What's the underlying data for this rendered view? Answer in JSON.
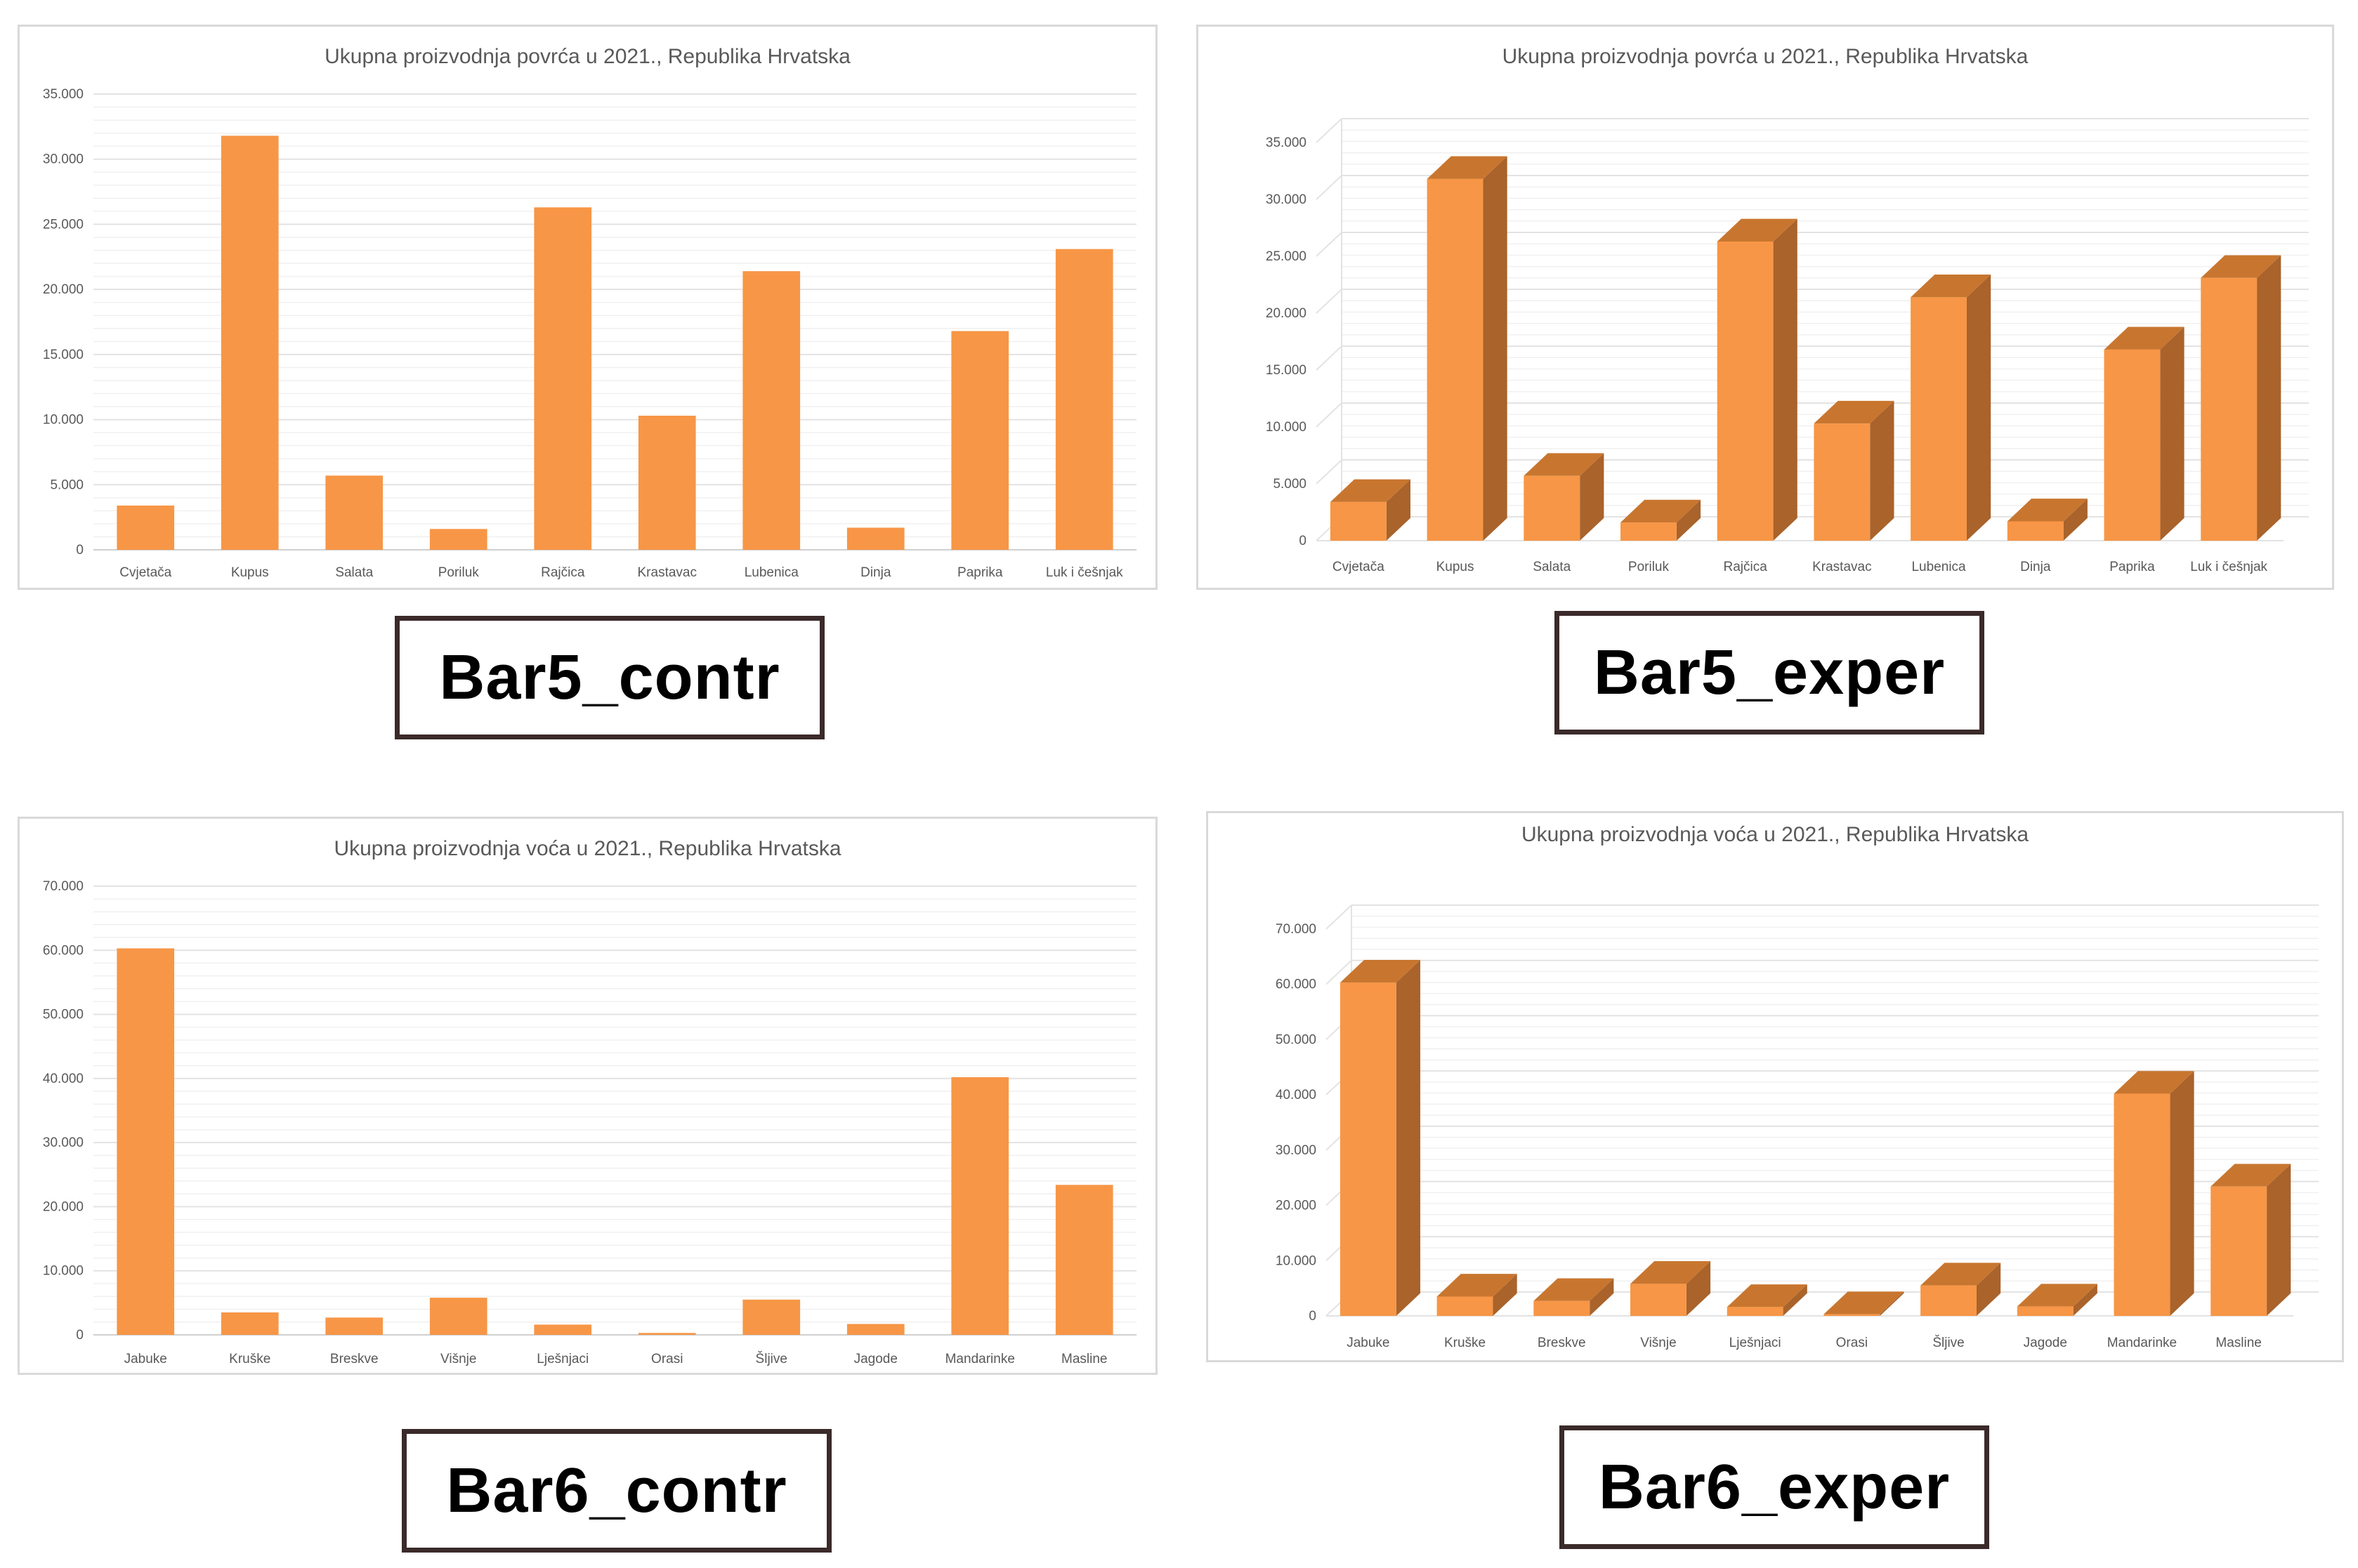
{
  "colors": {
    "bar": "#F79646",
    "bar_side": "#A9632B",
    "bar_top": "#C8762F",
    "grid": "#e3e3e3",
    "axis": "#d0d0d0"
  },
  "labels": {
    "bar5_contr": "Bar5_contr",
    "bar5_exper": "Bar5_exper",
    "bar6_contr": "Bar6_contr",
    "bar6_exper": "Bar6_exper"
  },
  "chart_data": [
    {
      "id": "bar5_contr",
      "type": "bar",
      "style": "2d",
      "title": "Ukupna proizvodnja povrća u 2021., Republika Hrvatska",
      "categories": [
        "Cvjetača",
        "Kupus",
        "Salata",
        "Poriluk",
        "Rajčica",
        "Krastavac",
        "Lubenica",
        "Dinja",
        "Paprika",
        "Luk i češnjak"
      ],
      "values": [
        3400,
        31800,
        5700,
        1600,
        26300,
        10300,
        21400,
        1700,
        16800,
        23100
      ],
      "ylim": [
        0,
        35000
      ],
      "yticks": [
        0,
        5000,
        10000,
        15000,
        20000,
        25000,
        30000,
        35000
      ],
      "ytick_labels": [
        "0",
        "5.000",
        "10.000",
        "15.000",
        "20.000",
        "25.000",
        "30.000",
        "35.000"
      ],
      "xlabel": "",
      "ylabel": "",
      "grid": true
    },
    {
      "id": "bar5_exper",
      "type": "bar",
      "style": "3d",
      "title": "Ukupna proizvodnja povrća u 2021., Republika Hrvatska",
      "categories": [
        "Cvjetača",
        "Kupus",
        "Salata",
        "Poriluk",
        "Rajčica",
        "Krastavac",
        "Lubenica",
        "Dinja",
        "Paprika",
        "Luk i češnjak"
      ],
      "values": [
        3400,
        31800,
        5700,
        1600,
        26300,
        10300,
        21400,
        1700,
        16800,
        23100
      ],
      "ylim": [
        0,
        35000
      ],
      "yticks": [
        0,
        5000,
        10000,
        15000,
        20000,
        25000,
        30000,
        35000
      ],
      "ytick_labels": [
        "0",
        "5.000",
        "10.000",
        "15.000",
        "20.000",
        "25.000",
        "30.000",
        "35.000"
      ],
      "xlabel": "",
      "ylabel": "",
      "grid": true
    },
    {
      "id": "bar6_contr",
      "type": "bar",
      "style": "2d",
      "title": "Ukupna proizvodnja voća u 2021., Republika Hrvatska",
      "categories": [
        "Jabuke",
        "Kruške",
        "Breskve",
        "Višnje",
        "Lješnjaci",
        "Orasi",
        "Šljive",
        "Jagode",
        "Mandarinke",
        "Masline"
      ],
      "values": [
        60300,
        3500,
        2700,
        5800,
        1600,
        300,
        5500,
        1700,
        40200,
        23400
      ],
      "ylim": [
        0,
        70000
      ],
      "yticks": [
        0,
        10000,
        20000,
        30000,
        40000,
        50000,
        60000,
        70000
      ],
      "ytick_labels": [
        "0",
        "10.000",
        "20.000",
        "30.000",
        "40.000",
        "50.000",
        "60.000",
        "70.000"
      ],
      "xlabel": "",
      "ylabel": "",
      "grid": true
    },
    {
      "id": "bar6_exper",
      "type": "bar",
      "style": "3d",
      "title": "Ukupna proizvodnja voća u 2021., Republika Hrvatska",
      "categories": [
        "Jabuke",
        "Kruške",
        "Breskve",
        "Višnje",
        "Lješnjaci",
        "Orasi",
        "Šljive",
        "Jagode",
        "Mandarinke",
        "Masline"
      ],
      "values": [
        60300,
        3500,
        2700,
        5800,
        1600,
        300,
        5500,
        1700,
        40200,
        23400
      ],
      "ylim": [
        0,
        70000
      ],
      "yticks": [
        0,
        10000,
        20000,
        30000,
        40000,
        50000,
        60000,
        70000
      ],
      "ytick_labels": [
        "0",
        "10.000",
        "20.000",
        "30.000",
        "40.000",
        "50.000",
        "60.000",
        "70.000"
      ],
      "xlabel": "",
      "ylabel": "",
      "grid": true
    }
  ]
}
